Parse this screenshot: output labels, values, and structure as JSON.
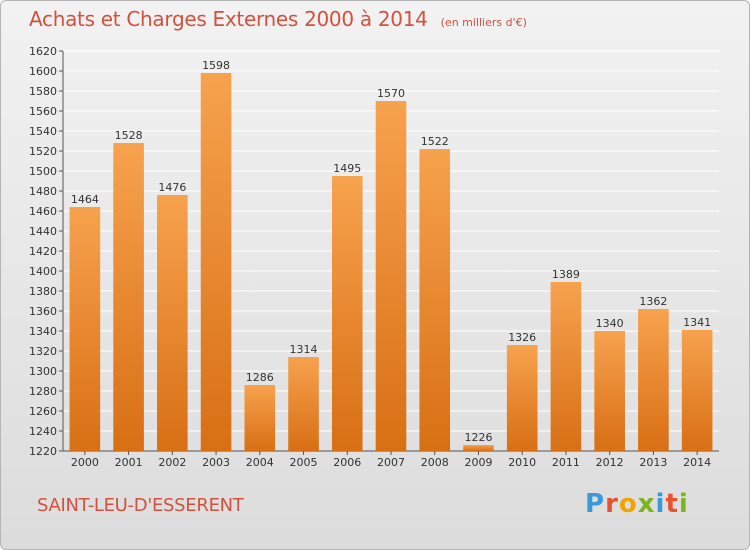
{
  "header": {
    "title": "Achats et Charges Externes 2000 à 2014",
    "subtitle": "(en milliers d'€)"
  },
  "footer": {
    "town": "SAINT-LEU-D'ESSERENT",
    "logo_letters": [
      "P",
      "r",
      "o",
      "x",
      "i",
      "t",
      "i"
    ],
    "logo_colors": [
      "#3a9ad9",
      "#e8532f",
      "#f2a300",
      "#7ab51d",
      "#3a9ad9",
      "#e8532f",
      "#7ab51d"
    ]
  },
  "colors": {
    "bar_light": "#f7a24e",
    "bar_dark": "#d86f14",
    "grid": "#ffffff",
    "title": "#d3513d"
  },
  "chart_data": {
    "type": "bar",
    "title": "Achats et Charges Externes 2000 à 2014",
    "subtitle": "(en milliers d'€)",
    "categories": [
      "2000",
      "2001",
      "2002",
      "2003",
      "2004",
      "2005",
      "2006",
      "2007",
      "2008",
      "2009",
      "2010",
      "2011",
      "2012",
      "2013",
      "2014"
    ],
    "values": [
      1464,
      1528,
      1476,
      1598,
      1286,
      1314,
      1495,
      1570,
      1522,
      1226,
      1326,
      1389,
      1340,
      1362,
      1341
    ],
    "ylim": [
      1220,
      1620
    ],
    "ytick_step": 20,
    "grid": true,
    "xlabel": "",
    "ylabel": ""
  }
}
